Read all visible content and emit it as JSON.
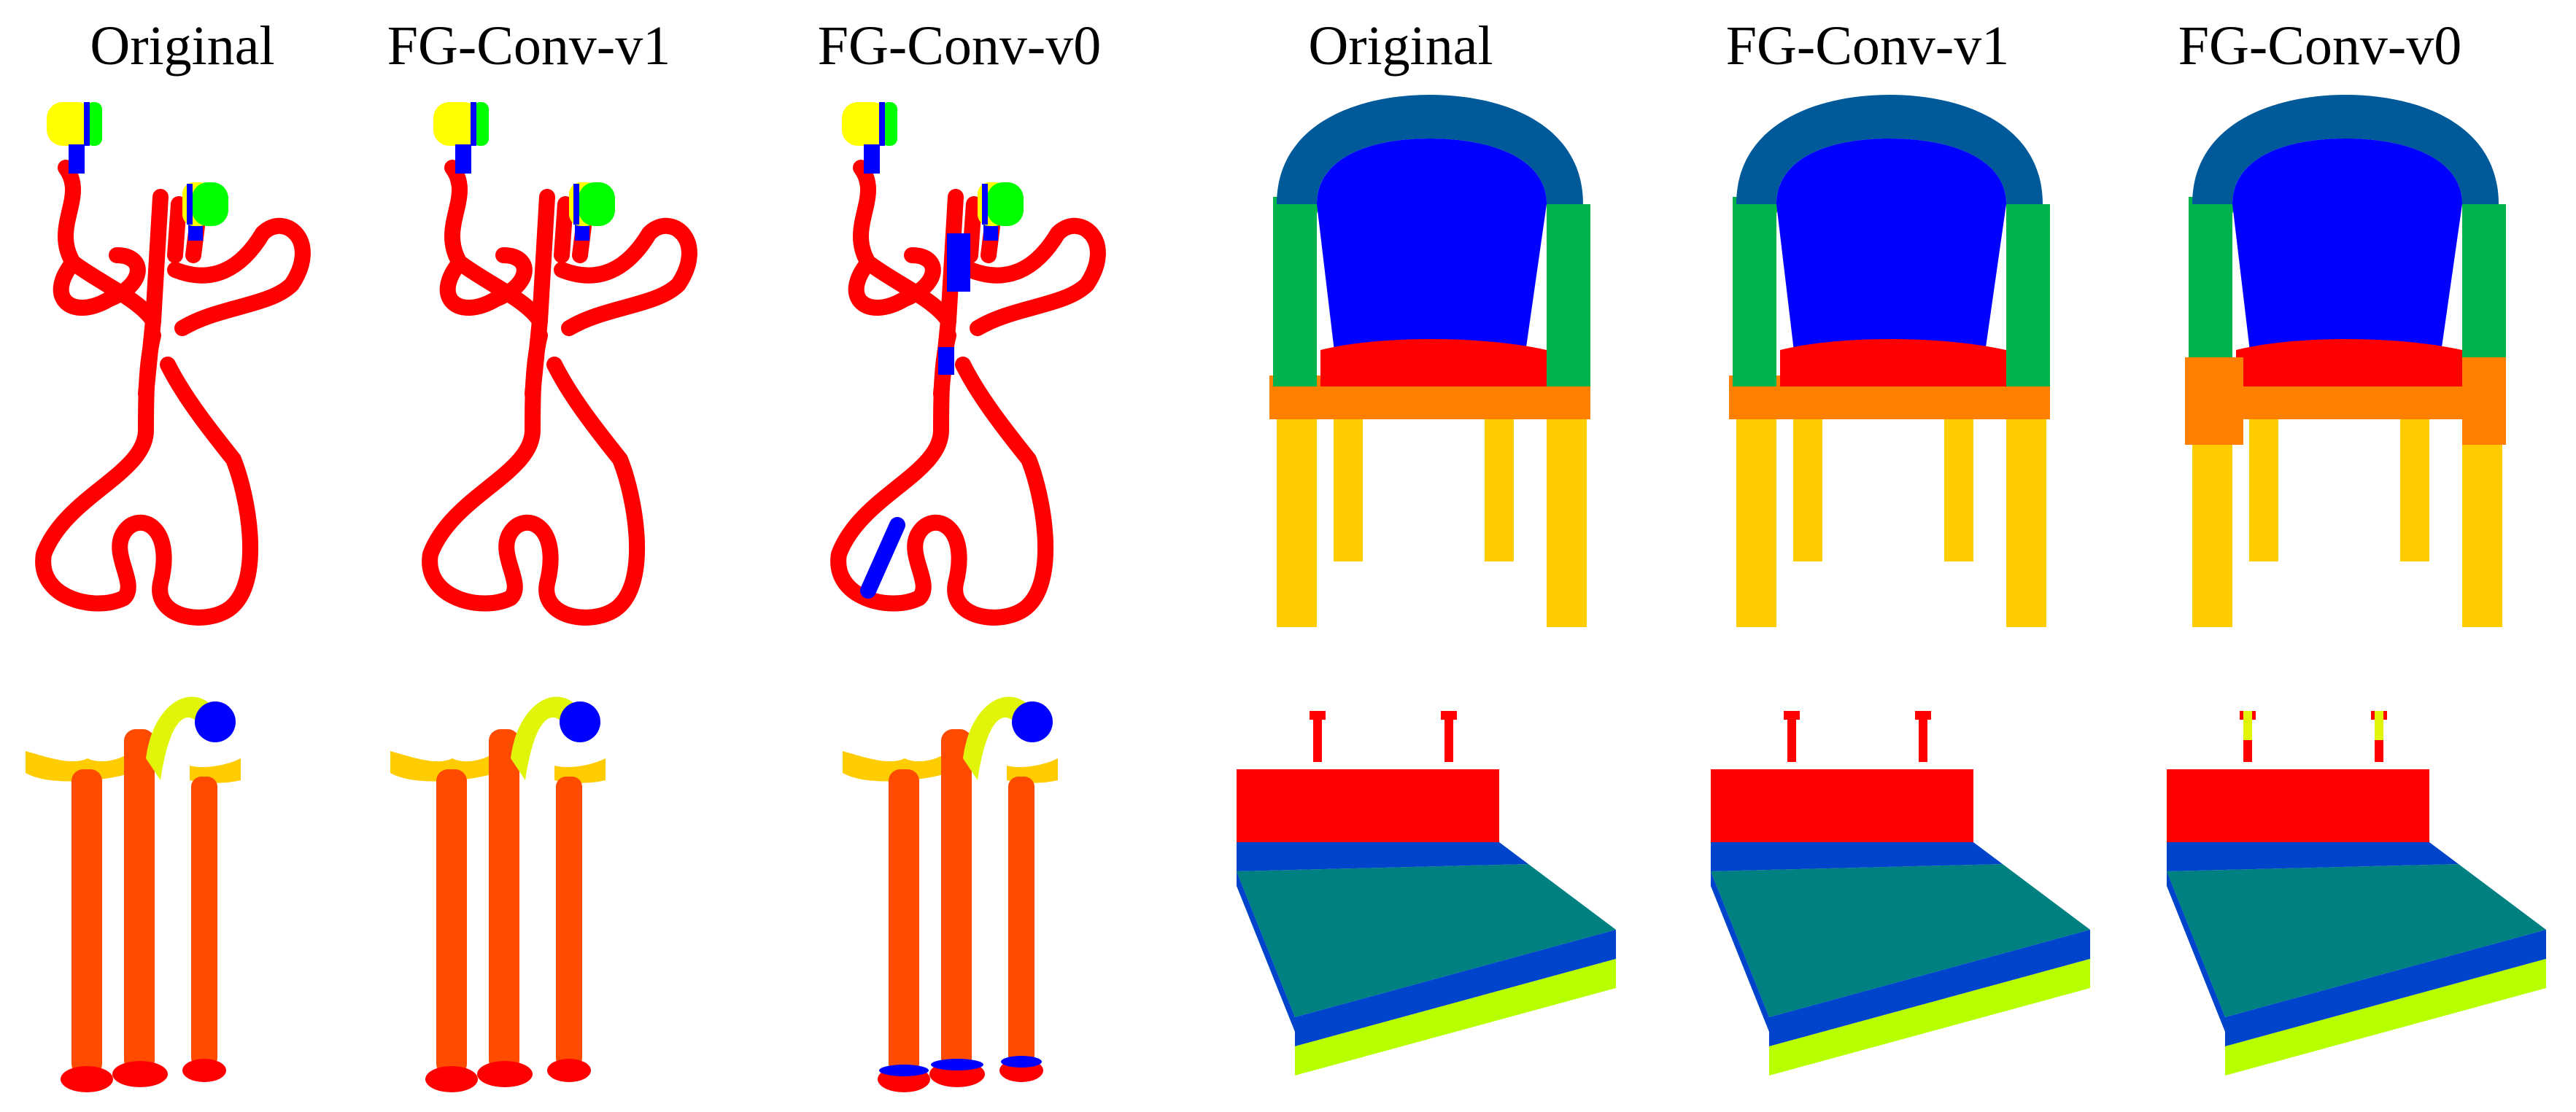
{
  "headings": [
    "Original",
    "FG-Conv-v1",
    "FG-Conv-v0",
    "Original",
    "FG-Conv-v1",
    "FG-Conv-v0"
  ],
  "colors": {
    "red": "#ff0000",
    "orange_red": "#ff4b00",
    "orange": "#ff7f00",
    "gold": "#ffcc00",
    "yellow": "#ffff00",
    "yellow_green": "#e1f50a",
    "lime": "#b8ff00",
    "green": "#00ff00",
    "mid_green": "#00b34a",
    "blue": "#0000ff",
    "royal_blue": "#0044cc",
    "steel_blue": "#005a9a",
    "teal": "#008080"
  }
}
